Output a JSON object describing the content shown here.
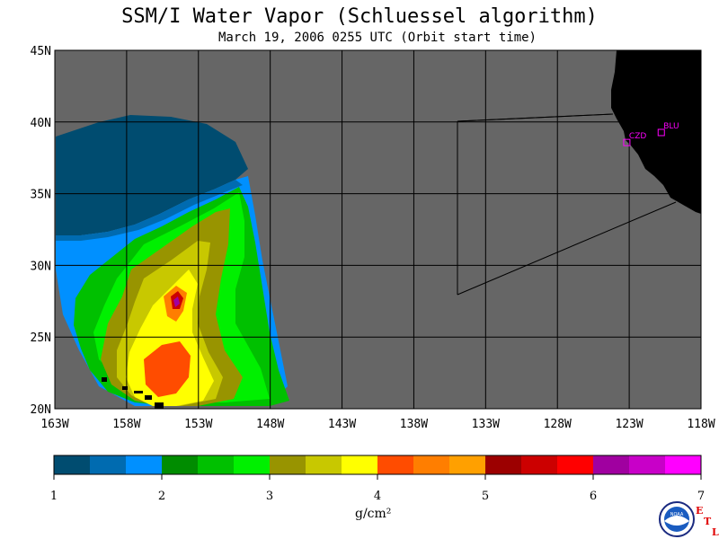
{
  "header": {
    "title": "SSM/I Water Vapor (Schluessel algorithm)",
    "subtitle": "March 19, 2006  0255 UTC  (Orbit start time)"
  },
  "map": {
    "lon_range": [
      -163,
      -118
    ],
    "lat_range": [
      20,
      45
    ],
    "lon_ticks": [
      "163W",
      "158W",
      "153W",
      "148W",
      "143W",
      "138W",
      "133W",
      "128W",
      "123W",
      "118W"
    ],
    "lat_ticks": [
      "45N",
      "40N",
      "35N",
      "30N",
      "25N",
      "20N"
    ],
    "no_data_color": "#666666",
    "land_color": "#000000",
    "stations": [
      {
        "code": "CZD",
        "lon": -123.2,
        "lat": 38.6
      },
      {
        "code": "BLU",
        "lon": -120.8,
        "lat": 39.3
      }
    ]
  },
  "colorbar": {
    "units": "g/cm²",
    "min": 1,
    "max": 7,
    "labels": [
      "1",
      "2",
      "3",
      "4",
      "5",
      "6",
      "7"
    ],
    "colors": [
      "#004c70",
      "#006bb0",
      "#0090ff",
      "#008c00",
      "#00c000",
      "#00f000",
      "#989400",
      "#c8c800",
      "#ffff00",
      "#ff4c00",
      "#ff7e00",
      "#ffa000",
      "#9c0000",
      "#cc0000",
      "#ff0000",
      "#a000a0",
      "#c800c8",
      "#ff00ff"
    ]
  },
  "logo": {
    "text": "NOAA",
    "side": "ETL"
  }
}
